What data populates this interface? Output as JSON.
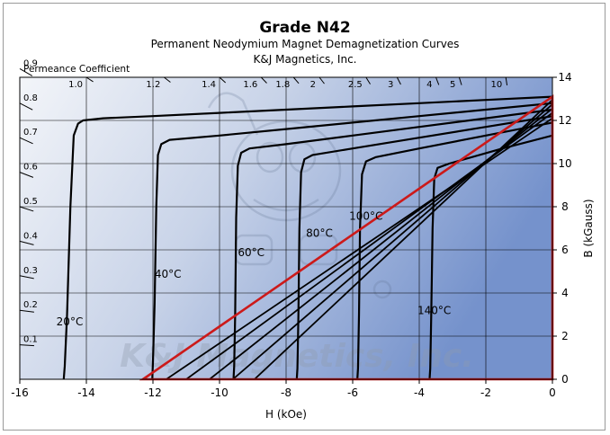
{
  "chart_data": {
    "type": "line",
    "title": "Grade N42",
    "subtitle": "Permanent Neodymium Magnet Demagnetization Curves",
    "company": "K&J Magnetics, Inc.",
    "watermark": "K&J Magnetics, Inc.",
    "xlabel": "H (kOe)",
    "ylabel": "B (kGauss)",
    "xlim": [
      -16,
      0
    ],
    "ylim": [
      0,
      14
    ],
    "x_ticks": [
      "-16",
      "-14",
      "-12",
      "-10",
      "-8",
      "-6",
      "-4",
      "-2",
      "0"
    ],
    "y_ticks": [
      "0",
      "2",
      "4",
      "6",
      "8",
      "10",
      "12",
      "14"
    ],
    "grid": true,
    "permeance_label": "Permeance Coefficient",
    "permeance_left_ticks": [
      "0.9",
      "0.8",
      "0.7",
      "0.6",
      "0.5",
      "0.4",
      "0.3",
      "0.2",
      "0.1"
    ],
    "permeance_top_ticks": [
      "1.0",
      "1.2",
      "1.4",
      "1.6",
      "1.8",
      "2",
      "2.5",
      "3",
      "4",
      "5",
      "10"
    ],
    "series": [
      {
        "name": "20°C",
        "color": "#000000",
        "label_pos": [
          -14.5,
          5.0
        ],
        "x": [
          0,
          -2,
          -4,
          -6,
          -8,
          -10,
          -12,
          -13.5,
          -14.1,
          -14.25,
          -14.38,
          -14.48,
          -14.58,
          -14.65,
          -14.68
        ],
        "y": [
          13.1,
          12.95,
          12.8,
          12.65,
          12.5,
          12.35,
          12.2,
          12.1,
          12.0,
          11.85,
          11.3,
          8.0,
          3.0,
          0.6,
          0
        ]
      },
      {
        "name": "40°C",
        "color": "#000000",
        "label_pos": [
          -11.55,
          9.4
        ],
        "x": [
          0,
          -2,
          -4,
          -6,
          -8,
          -10,
          -11.5,
          -11.75,
          -11.85,
          -11.9,
          -11.95,
          -12.0,
          -12.02
        ],
        "y": [
          12.8,
          12.5,
          12.2,
          11.9,
          11.6,
          11.3,
          11.1,
          10.9,
          10.4,
          8.0,
          3.5,
          0.8,
          0
        ]
      },
      {
        "name": "60°C",
        "color": "#000000",
        "label_pos": [
          -9.05,
          11.4
        ],
        "x": [
          0,
          -2,
          -4,
          -6,
          -8,
          -9.1,
          -9.35,
          -9.45,
          -9.5,
          -9.53,
          -9.56,
          -9.58
        ],
        "y": [
          12.5,
          12.1,
          11.7,
          11.3,
          10.9,
          10.7,
          10.5,
          9.9,
          7.5,
          3.0,
          0.6,
          0
        ]
      },
      {
        "name": "80°C",
        "color": "#000000",
        "label_pos": [
          -7.0,
          13.2
        ],
        "x": [
          0,
          -2,
          -4,
          -6,
          -7.2,
          -7.45,
          -7.55,
          -7.6,
          -7.63,
          -7.66,
          -7.68
        ],
        "y": [
          12.2,
          11.7,
          11.2,
          10.7,
          10.4,
          10.2,
          9.6,
          7.0,
          3.0,
          0.5,
          0
        ]
      },
      {
        "name": "100°C",
        "color": "#000000",
        "label_pos": [
          -5.6,
          14.8
        ],
        "x": [
          0,
          -2,
          -4,
          -5.3,
          -5.6,
          -5.72,
          -5.78,
          -5.81,
          -5.84,
          -5.86
        ],
        "y": [
          11.9,
          11.3,
          10.7,
          10.3,
          10.1,
          9.5,
          7.0,
          3.0,
          0.5,
          0
        ]
      },
      {
        "name": "140°C",
        "color": "#000000",
        "label_pos": [
          -3.55,
          6.05
        ],
        "x": [
          0,
          -1.5,
          -3.1,
          -3.45,
          -3.55,
          -3.6,
          -3.64,
          -3.67,
          -3.69
        ],
        "y": [
          11.3,
          10.7,
          10.0,
          9.8,
          9.3,
          7.0,
          3.0,
          0.5,
          0
        ]
      }
    ],
    "load_lines": [
      {
        "x": [
          0,
          -8.95
        ],
        "y": [
          12.95,
          0
        ]
      },
      {
        "x": [
          0,
          -9.6
        ],
        "y": [
          12.75,
          0
        ]
      },
      {
        "x": [
          0,
          -10.3
        ],
        "y": [
          12.55,
          0
        ]
      },
      {
        "x": [
          0,
          -11.0
        ],
        "y": [
          12.35,
          0
        ]
      },
      {
        "x": [
          0,
          -11.6
        ],
        "y": [
          12.1,
          0
        ]
      }
    ],
    "highlight_triangle": {
      "color": "#cc1a1a",
      "points": [
        [
          -12.3,
          0
        ],
        [
          0,
          13.1
        ],
        [
          0,
          0
        ]
      ]
    },
    "colors": {
      "plot_bg_left": "#f2f4f8",
      "plot_bg_right": "#7d97cf",
      "grid": "#000000",
      "highlight": "#cc1a1a"
    }
  }
}
